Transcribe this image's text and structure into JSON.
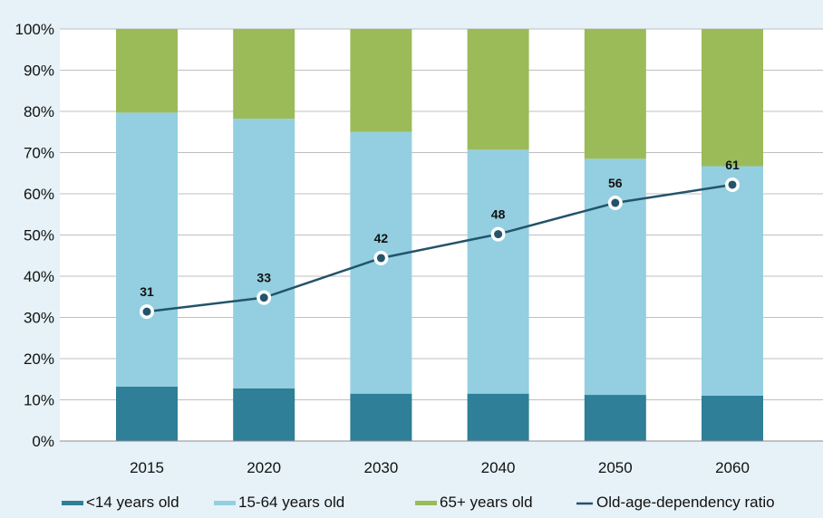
{
  "chart_data": {
    "type": "bar",
    "stacked": true,
    "stack_mode": "percent",
    "categories": [
      "2015",
      "2020",
      "2030",
      "2040",
      "2050",
      "2060"
    ],
    "series": [
      {
        "name": "<14 years old",
        "kind": "bar",
        "color": "#2e7f97",
        "values": [
          13.2,
          12.8,
          11.5,
          11.5,
          11.2,
          11.0
        ]
      },
      {
        "name": "15-64 years old",
        "kind": "bar",
        "color": "#93cfe0",
        "values": [
          66.5,
          65.4,
          63.5,
          59.2,
          57.3,
          55.7
        ]
      },
      {
        "name": "65+ years old",
        "kind": "bar",
        "color": "#9bbb59",
        "values": [
          20.3,
          21.8,
          25.0,
          29.3,
          31.5,
          33.3
        ]
      },
      {
        "name": "Old-age-dependency ratio",
        "kind": "line",
        "color": "#24536b",
        "values": [
          31,
          33,
          42,
          48,
          56,
          61
        ],
        "plotted_at_percent": [
          31.4,
          34.8,
          44.4,
          50.2,
          57.8,
          62.2
        ]
      }
    ],
    "data_labels": [
      "31",
      "33",
      "42",
      "48",
      "56",
      "61"
    ],
    "y_ticks": [
      "0%",
      "10%",
      "20%",
      "30%",
      "40%",
      "50%",
      "60%",
      "70%",
      "80%",
      "90%",
      "100%"
    ],
    "ylim": [
      0,
      100
    ],
    "y_unit": "%",
    "xlabel": "",
    "ylabel": "",
    "title": "",
    "grid": true,
    "legend_position": "bottom"
  }
}
